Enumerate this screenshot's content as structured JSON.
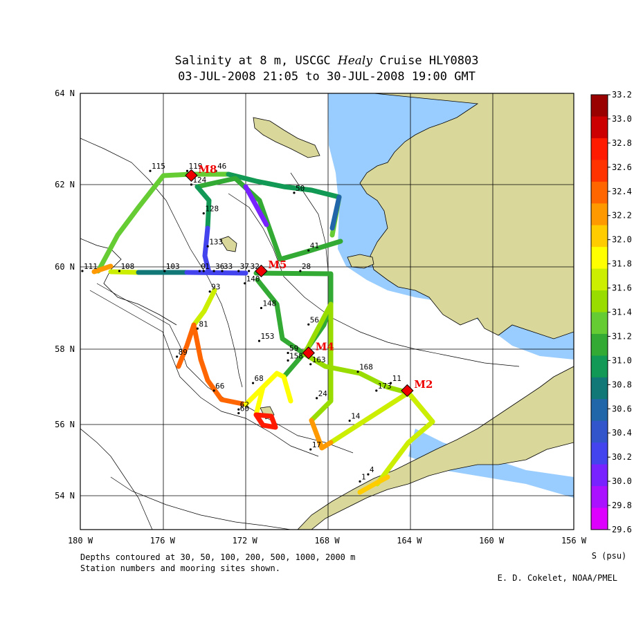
{
  "title": {
    "line1_prefix": "Salinity at 8 m, USCGC ",
    "line1_italic": "Healy",
    "line1_suffix": " Cruise HLY0803",
    "line2": "03-JUL-2008 21:05 to 30-JUL-2008 19:00 GMT"
  },
  "axes": {
    "x_ticks": [
      "180 W",
      "176 W",
      "172 W",
      "168 W",
      "164 W",
      "160 W",
      "156 W"
    ],
    "y_ticks": [
      "64 N",
      "62 N",
      "60 N",
      "58 N",
      "56 N",
      "54 N"
    ]
  },
  "colorbar": {
    "unit_label": "S (psu)",
    "values": [
      "33.2",
      "33.0",
      "32.8",
      "32.6",
      "32.4",
      "32.2",
      "32.0",
      "31.8",
      "31.6",
      "31.4",
      "31.2",
      "31.0",
      "30.8",
      "30.6",
      "30.4",
      "30.2",
      "30.0",
      "29.8",
      "29.6"
    ],
    "colors": [
      "#990000",
      "#cc0000",
      "#ff1a00",
      "#ff3300",
      "#ff6600",
      "#ff9900",
      "#ffcc00",
      "#ffff00",
      "#ccee00",
      "#99dd00",
      "#66cc33",
      "#33aa33",
      "#119955",
      "#117777",
      "#2266aa",
      "#3355cc",
      "#4444ee",
      "#7722ff",
      "#aa11ff",
      "#dd00ff"
    ]
  },
  "footer": {
    "depths_note": "Depths contoured at 30, 50, 100, 200, 500, 1000, 2000 m",
    "stations_note": "Station numbers and mooring sites shown.",
    "credit": "E. D. Cokelet, NOAA/PMEL"
  },
  "moorings": [
    {
      "label": "M8",
      "lon": -174.6,
      "lat": 62.2
    },
    {
      "label": "M5",
      "lon": -171.2,
      "lat": 59.9
    },
    {
      "label": "M4",
      "lon": -168.9,
      "lat": 57.9
    },
    {
      "label": "M2",
      "lon": -164.1,
      "lat": 56.9
    }
  ],
  "stations": [
    {
      "label": "115",
      "lon": -176.6,
      "lat": 62.3
    },
    {
      "label": "119",
      "lon": -174.8,
      "lat": 62.3
    },
    {
      "label": "46",
      "lon": -173.4,
      "lat": 62.3
    },
    {
      "label": "124",
      "lon": -174.6,
      "lat": 62.0
    },
    {
      "label": "50",
      "lon": -169.6,
      "lat": 61.8
    },
    {
      "label": "128",
      "lon": -174.0,
      "lat": 61.3
    },
    {
      "label": "133",
      "lon": -173.8,
      "lat": 60.5
    },
    {
      "label": "41",
      "lon": -168.9,
      "lat": 60.4
    },
    {
      "label": "111",
      "lon": -179.9,
      "lat": 59.9
    },
    {
      "label": "108",
      "lon": -178.1,
      "lat": 59.9
    },
    {
      "label": "103",
      "lon": -175.9,
      "lat": 59.9
    },
    {
      "label": "1",
      "lon": -175.9,
      "lat": 59.9
    },
    {
      "label": "1",
      "lon": -174.0,
      "lat": 59.9
    },
    {
      "label": "0",
      "lon": -174.2,
      "lat": 59.9
    },
    {
      "label": "36",
      "lon": -173.5,
      "lat": 59.9
    },
    {
      "label": "33",
      "lon": -173.1,
      "lat": 59.9
    },
    {
      "label": "37",
      "lon": -172.3,
      "lat": 59.9
    },
    {
      "label": "32",
      "lon": -171.8,
      "lat": 59.9
    },
    {
      "label": "28",
      "lon": -169.3,
      "lat": 59.9
    },
    {
      "label": "140",
      "lon": -172.0,
      "lat": 59.6
    },
    {
      "label": "93",
      "lon": -173.7,
      "lat": 59.4
    },
    {
      "label": "148",
      "lon": -171.2,
      "lat": 59.0
    },
    {
      "label": "56",
      "lon": -168.9,
      "lat": 58.6
    },
    {
      "label": "81",
      "lon": -174.3,
      "lat": 58.5
    },
    {
      "label": "153",
      "lon": -171.3,
      "lat": 58.2
    },
    {
      "label": "59",
      "lon": -169.9,
      "lat": 57.9
    },
    {
      "label": "89",
      "lon": -175.3,
      "lat": 57.8
    },
    {
      "label": "158",
      "lon": -169.9,
      "lat": 57.7
    },
    {
      "label": "163",
      "lon": -168.8,
      "lat": 57.6
    },
    {
      "label": "168",
      "lon": -166.5,
      "lat": 57.4
    },
    {
      "label": "11",
      "lon": -164.9,
      "lat": 57.1
    },
    {
      "label": "173",
      "lon": -165.6,
      "lat": 56.9
    },
    {
      "label": "68",
      "lon": -171.6,
      "lat": 57.1
    },
    {
      "label": "66",
      "lon": -173.5,
      "lat": 56.9
    },
    {
      "label": "24",
      "lon": -168.5,
      "lat": 56.7
    },
    {
      "label": "62",
      "lon": -172.3,
      "lat": 56.4
    },
    {
      "label": "60",
      "lon": -172.3,
      "lat": 56.3
    },
    {
      "label": "14",
      "lon": -166.9,
      "lat": 56.1
    },
    {
      "label": "17",
      "lon": -168.8,
      "lat": 55.3
    },
    {
      "label": "4",
      "lon": -166.0,
      "lat": 54.6
    },
    {
      "label": "1",
      "lon": -166.4,
      "lat": 54.4
    }
  ]
}
